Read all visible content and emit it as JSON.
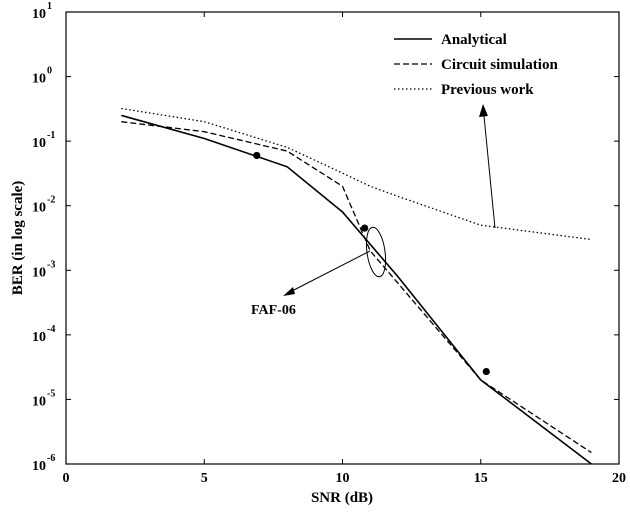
{
  "chart_data": {
    "type": "line",
    "xlabel": "SNR (dB)",
    "ylabel": "BER (in log scale)",
    "xlim": [
      0,
      20
    ],
    "ylim": [
      1e-06,
      10
    ],
    "yscale": "log",
    "grid": false,
    "legend_position": "top-right",
    "x_ticks": [
      {
        "value": 0,
        "label": "0"
      },
      {
        "value": 5,
        "label": "5"
      },
      {
        "value": 10,
        "label": "10"
      },
      {
        "value": 15,
        "label": "15"
      },
      {
        "value": 20,
        "label": "20"
      }
    ],
    "y_ticks": [
      {
        "value": 1e-06,
        "base": "10",
        "exp": "-6"
      },
      {
        "value": 1e-05,
        "base": "10",
        "exp": "-5"
      },
      {
        "value": 0.0001,
        "base": "10",
        "exp": "-4"
      },
      {
        "value": 0.001,
        "base": "10",
        "exp": "-3"
      },
      {
        "value": 0.01,
        "base": "10",
        "exp": "-2"
      },
      {
        "value": 0.1,
        "base": "10",
        "exp": "-1"
      },
      {
        "value": 1,
        "base": "10",
        "exp": "0"
      },
      {
        "value": 10,
        "base": "10",
        "exp": "1"
      }
    ],
    "series": [
      {
        "name": "Analytical",
        "style": "solid",
        "color": "#000000",
        "x": [
          2,
          5,
          8,
          10,
          12,
          15,
          19
        ],
        "y": [
          0.25,
          0.11,
          0.04,
          0.008,
          0.0008,
          2e-05,
          1e-06
        ]
      },
      {
        "name": "Circuit simulation",
        "style": "dashed",
        "color": "#000000",
        "x": [
          2,
          5,
          8,
          10,
          11,
          15,
          19
        ],
        "y": [
          0.2,
          0.14,
          0.07,
          0.02,
          0.002,
          2e-05,
          1.5e-06
        ]
      },
      {
        "name": "Previous work",
        "style": "dotted",
        "color": "#000000",
        "x": [
          2,
          5,
          8,
          10,
          11,
          12,
          15,
          19
        ],
        "y": [
          0.32,
          0.2,
          0.08,
          0.032,
          0.02,
          0.014,
          0.005,
          0.003
        ]
      }
    ],
    "markers": [
      {
        "x": 6.9,
        "y": 0.06
      },
      {
        "x": 10.8,
        "y": 0.0045
      },
      {
        "x": 15.2,
        "y": 2.7e-05
      }
    ],
    "annotations": [
      {
        "text": "FAF-06",
        "x": 9.1,
        "y": 0.00021
      }
    ]
  }
}
